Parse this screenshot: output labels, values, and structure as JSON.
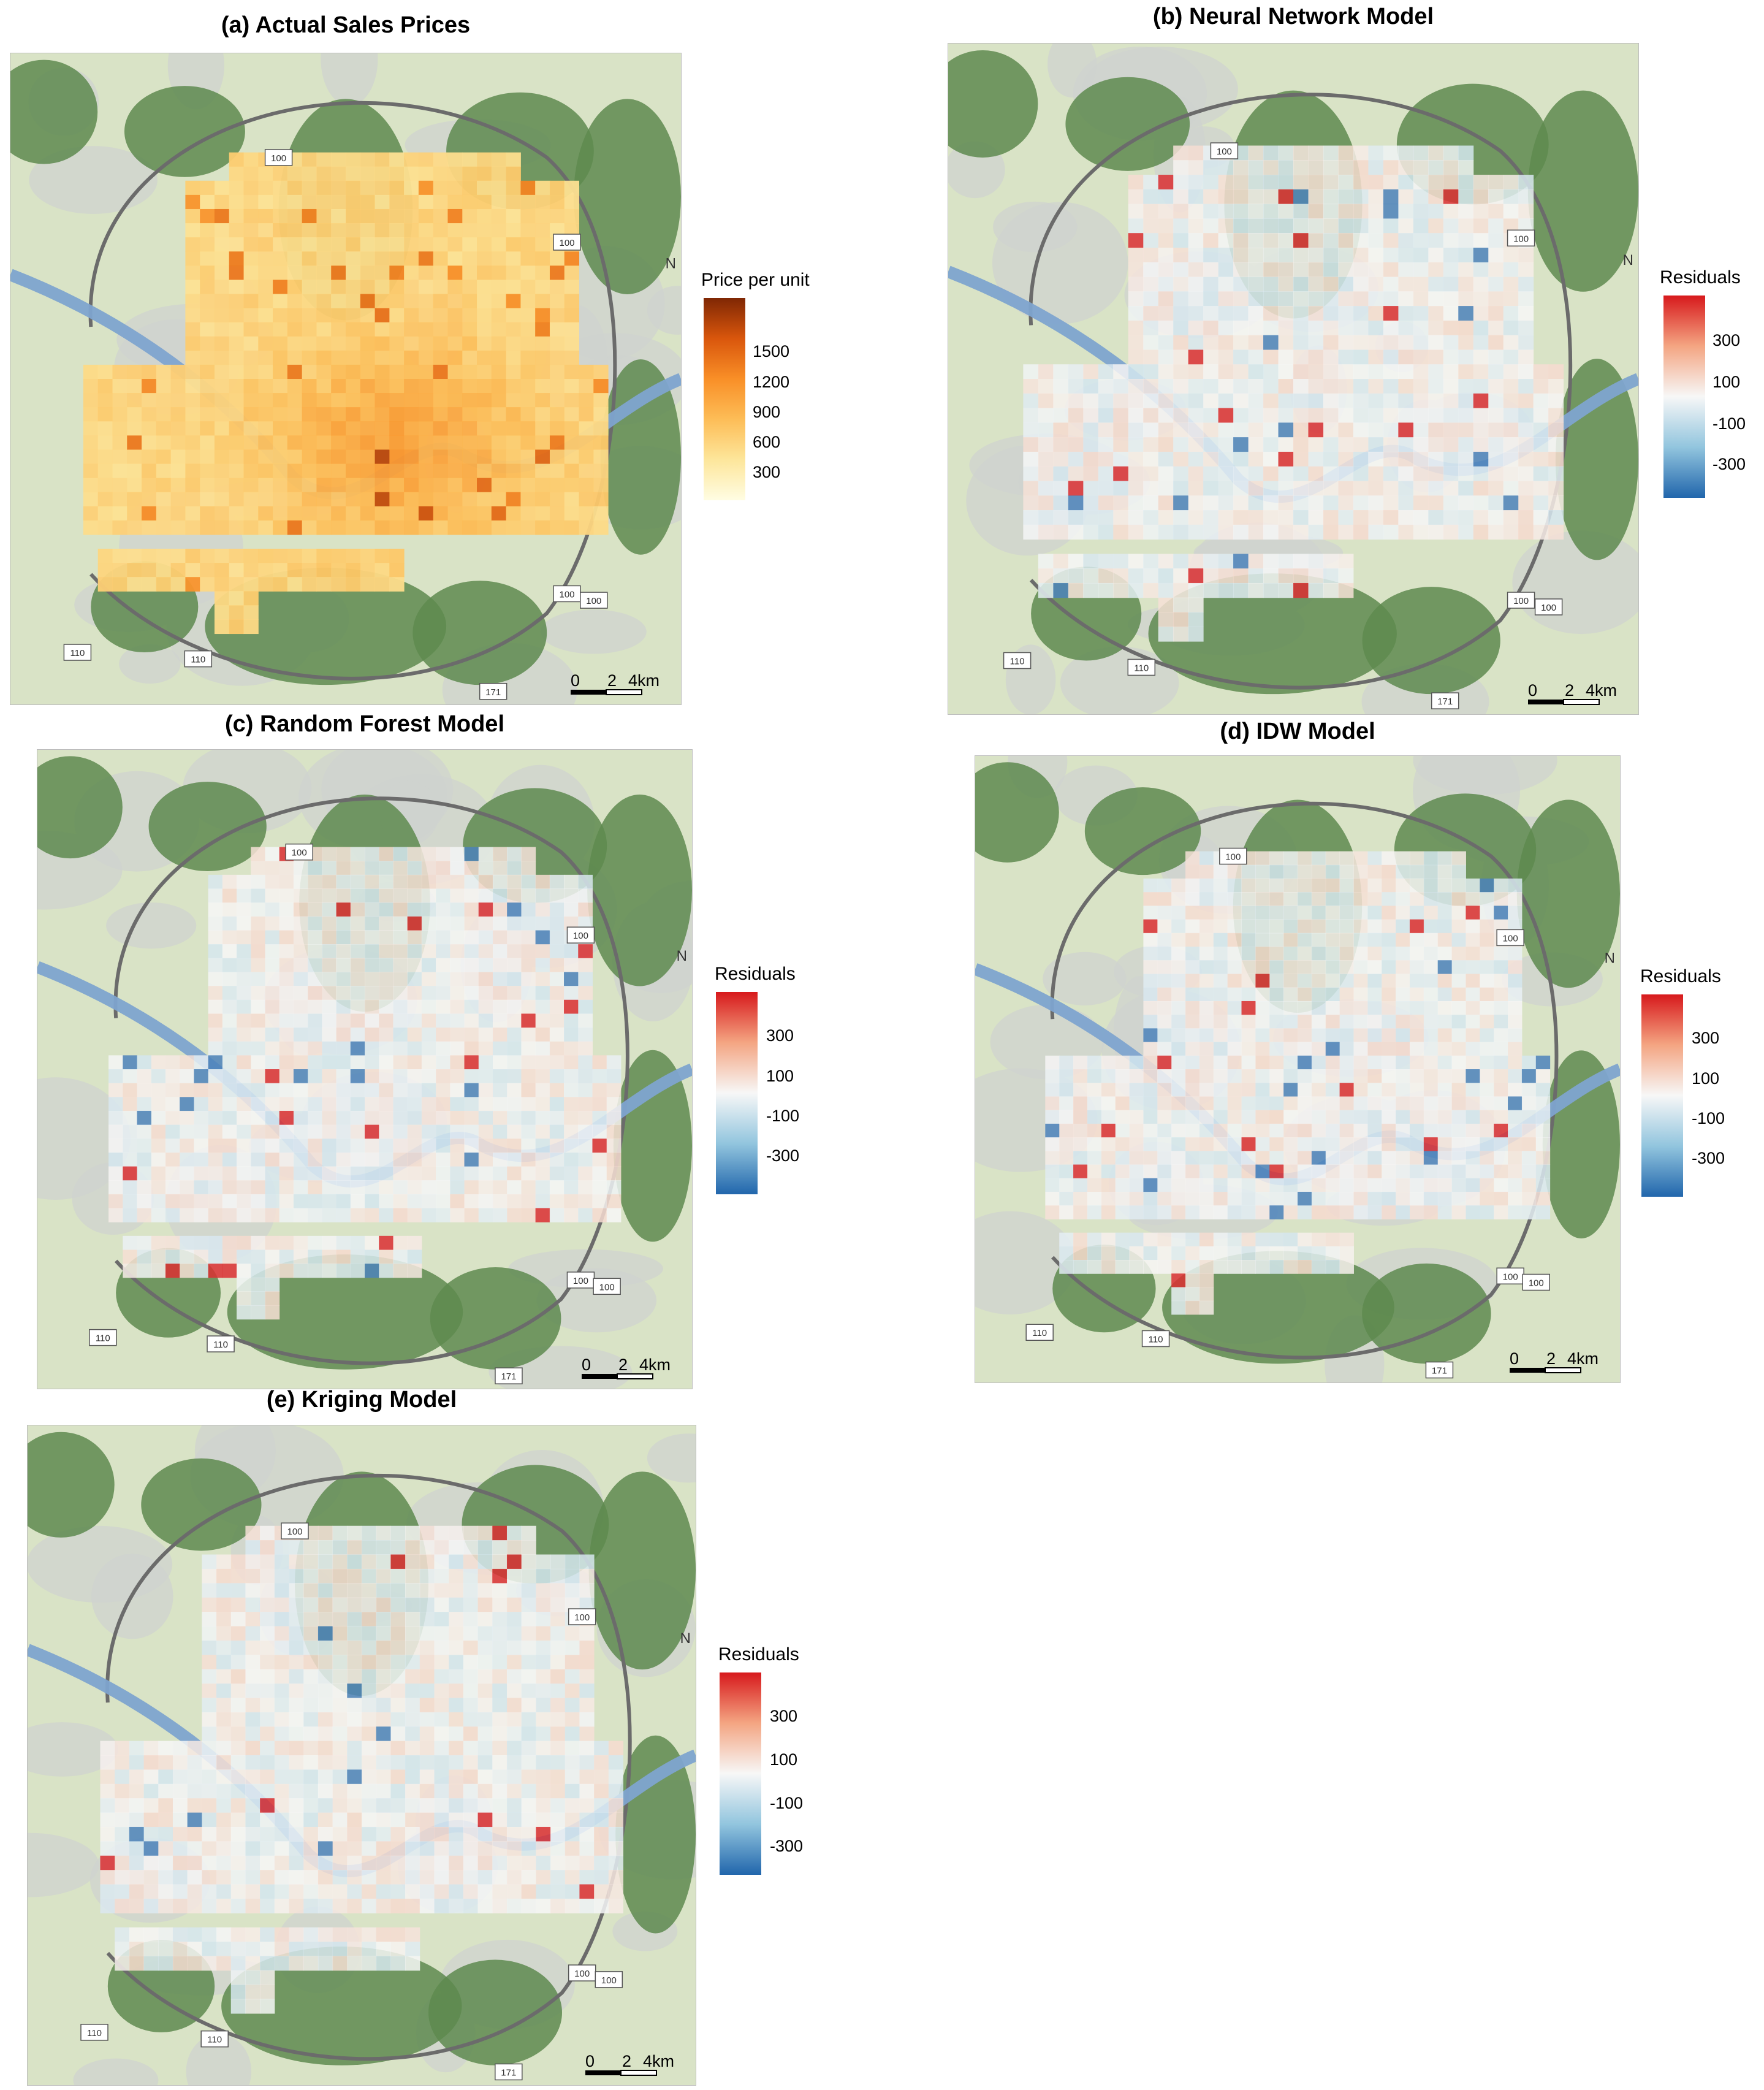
{
  "panels": [
    {
      "id": "a",
      "title": "(a) Actual Sales Prices",
      "kind": "price"
    },
    {
      "id": "b",
      "title": "(b) Neural Network Model",
      "kind": "residual"
    },
    {
      "id": "c",
      "title": "(c) Random Forest Model",
      "kind": "residual"
    },
    {
      "id": "d",
      "title": "(d) IDW Model",
      "kind": "residual"
    },
    {
      "id": "e",
      "title": "(e) Kriging Model",
      "kind": "residual"
    }
  ],
  "legend_price": {
    "title": "Price per unit",
    "ticks": [
      "1500",
      "1200",
      "900",
      "600",
      "300"
    ],
    "colors": [
      "#fffde3",
      "#fde69b",
      "#fdbd57",
      "#f98f27",
      "#d9560c",
      "#7f2704"
    ]
  },
  "legend_residual": {
    "title": "Residuals",
    "ticks": [
      "300",
      "100",
      "-100",
      "-300"
    ],
    "colors": [
      "#d7191c",
      "#f4a582",
      "#f7f7f7",
      "#92c5de",
      "#2166ac"
    ]
  },
  "scale_bar": {
    "labels": [
      "0",
      "2",
      "4km"
    ]
  },
  "north_label": "N",
  "road_labels": [
    "100",
    "100",
    "100",
    "100",
    "110",
    "110",
    "171"
  ],
  "map_colors": {
    "forest": "#5e8a4f",
    "land": "#d9e3c6",
    "urban": "#cfd3cf",
    "river": "#7ea4cf",
    "road": "#6b6b6b"
  }
}
